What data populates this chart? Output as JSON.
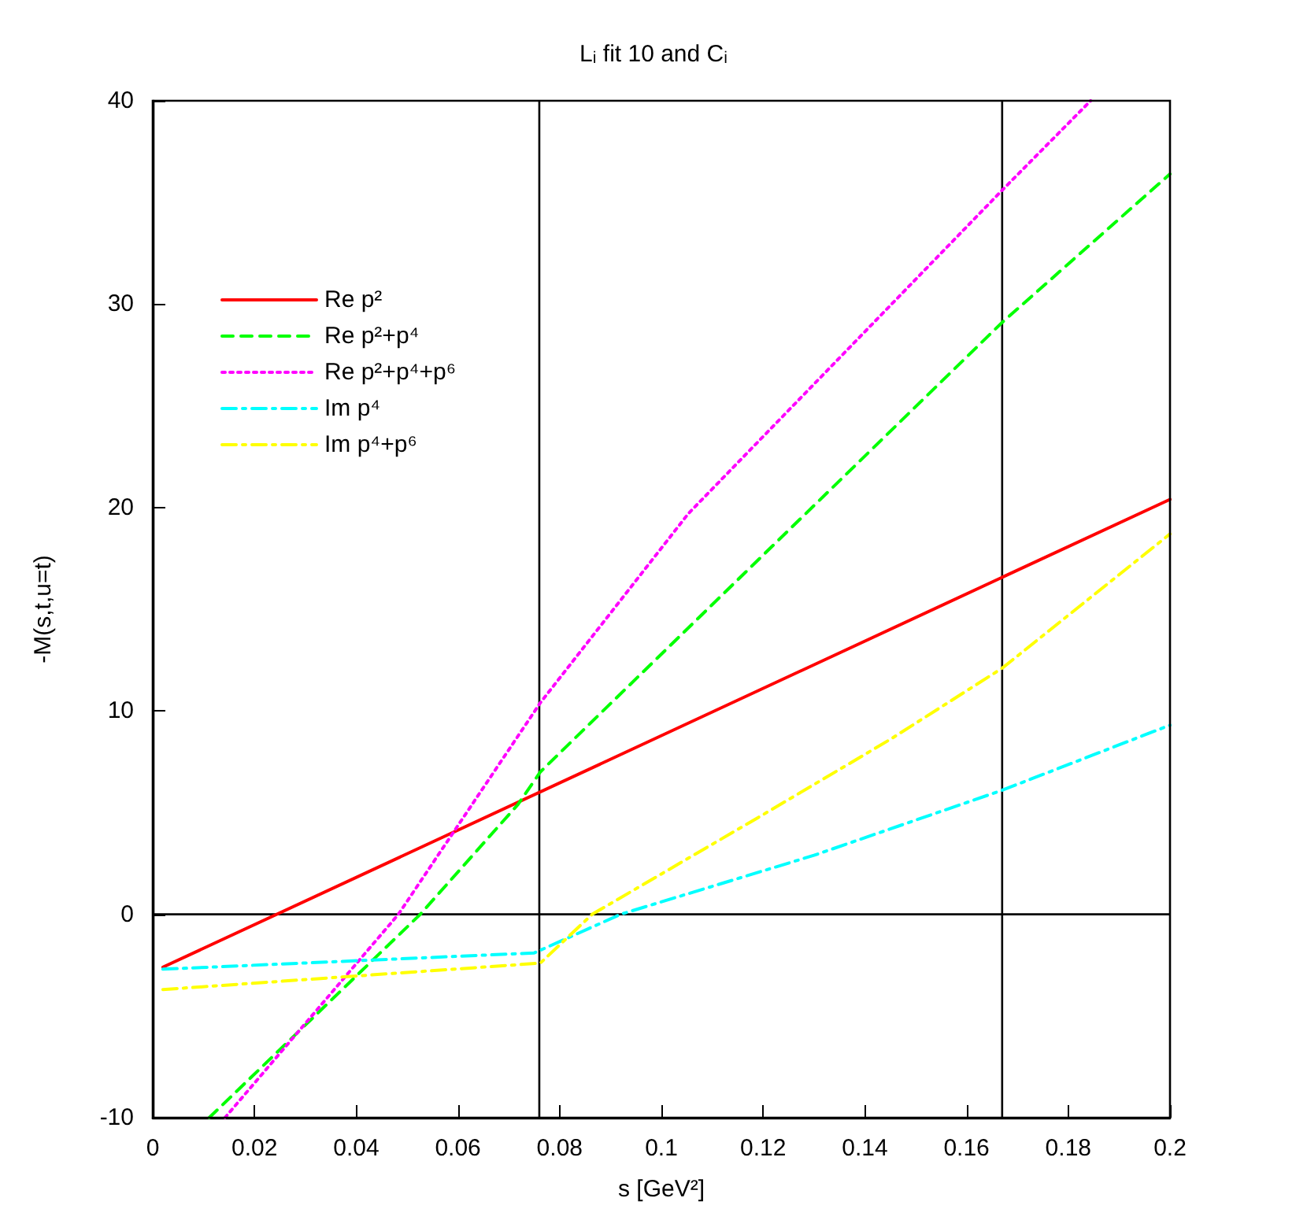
{
  "chart_data": {
    "type": "line",
    "title": "Lᵢ fit 10 and Cᵢ",
    "xlabel": "s [GeV²]",
    "ylabel": "-M(s,t,u=t)",
    "xlim": [
      0,
      0.2
    ],
    "xticks": [
      0,
      0.02,
      0.04,
      0.06,
      0.08,
      0.1,
      0.12,
      0.14,
      0.16,
      0.18,
      0.2
    ],
    "ylim": [
      -10,
      40
    ],
    "yticks": [
      -10,
      0,
      10,
      20,
      30,
      40
    ],
    "grid": false,
    "legend": "top left",
    "marker": "none",
    "ref_lines": [
      {
        "axis": "x",
        "value": 0.076,
        "color": "#000000"
      },
      {
        "axis": "x",
        "value": 0.167,
        "color": "#000000"
      },
      {
        "axis": "y",
        "value": 0,
        "color": "#000000"
      }
    ],
    "series": [
      {
        "name": "Re p²",
        "color": "#ff0000",
        "line_style": "solid",
        "x": [
          0.002,
          0.2
        ],
        "values": [
          -2.6,
          20.4
        ]
      },
      {
        "name": "Re p²+p⁴",
        "color": "#00ff00",
        "line_style": "dashed",
        "x": [
          0.0111,
          0.0526,
          0.0718,
          0.0762,
          0.167,
          0.2
        ],
        "values": [
          -10,
          0,
          5.4,
          7.0,
          29.1,
          36.4
        ]
      },
      {
        "name": "Re p²+p⁴+p⁶",
        "color": "#ff00ff",
        "line_style": "dotted",
        "x": [
          0.0142,
          0.0483,
          0.0762,
          0.1053,
          0.167,
          0.1844
        ],
        "values": [
          -10,
          0,
          10.4,
          19.7,
          35.6,
          40
        ]
      },
      {
        "name": "Im p⁴",
        "color": "#00ffff",
        "line_style": "dashdot",
        "x": [
          0.002,
          0.075,
          0.092,
          0.13,
          0.167,
          0.2
        ],
        "values": [
          -2.7,
          -1.9,
          0,
          2.9,
          6.1,
          9.3
        ]
      },
      {
        "name": "Im p⁴+p⁶",
        "color": "#ffff00",
        "line_style": "dashdot",
        "x": [
          0.002,
          0.0762,
          0.0864,
          0.12,
          0.145,
          0.167,
          0.2
        ],
        "values": [
          -3.7,
          -2.4,
          0,
          4.9,
          8.6,
          12.1,
          18.7
        ]
      }
    ]
  }
}
